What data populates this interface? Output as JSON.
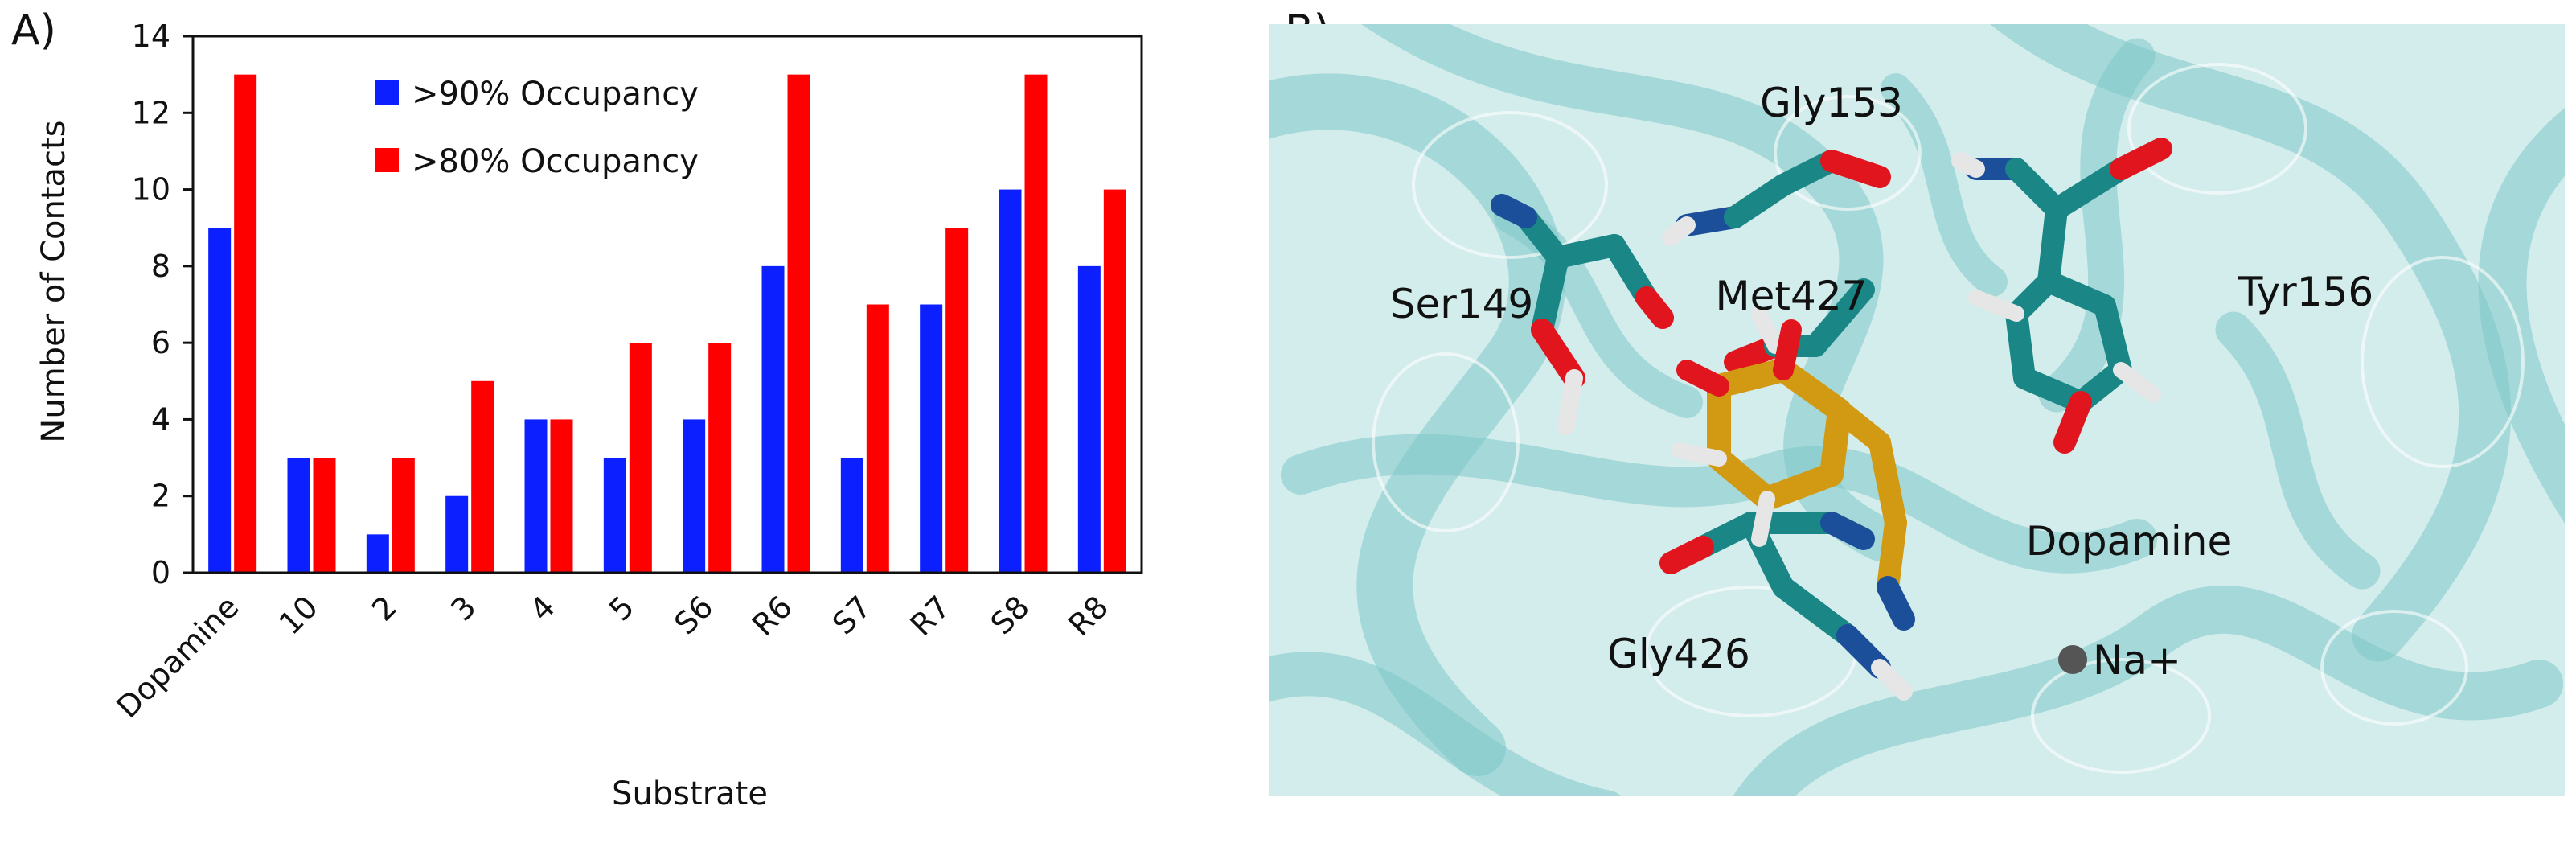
{
  "panels": {
    "a_label": "A)",
    "b_label": "B)"
  },
  "colors": {
    "series1": "#0b1fff",
    "series2": "#ff0000",
    "ribbon": "#7fc9c9",
    "carbon": "#1a8686",
    "dopamine": "#d19a12",
    "nitrogen": "#1b4f9a",
    "oxygen": "#e0151d",
    "hydrogen": "#e6e6e6",
    "sodium": "#555555"
  },
  "chart_data": {
    "type": "bar",
    "categories": [
      "Dopamine",
      "10",
      "2",
      "3",
      "4",
      "5",
      "S6",
      "R6",
      "S7",
      "R7",
      "S8",
      "R8"
    ],
    "series": [
      {
        "name": ">90% Occupancy",
        "color": "#0b1fff",
        "values": [
          9,
          3,
          1,
          2,
          4,
          3,
          4,
          8,
          3,
          7,
          10,
          8
        ]
      },
      {
        "name": ">80% Occupancy",
        "color": "#ff0000",
        "values": [
          13,
          3,
          3,
          5,
          4,
          6,
          6,
          13,
          7,
          9,
          13,
          10
        ]
      }
    ],
    "title": "",
    "xlabel": "Substrate",
    "ylabel": "Number of Contacts",
    "ylim": [
      0,
      14
    ],
    "yticks": [
      0,
      2,
      4,
      6,
      8,
      10,
      12,
      14
    ],
    "grid": false,
    "legend": "top-left inside plot"
  },
  "structure": {
    "residue_labels": [
      "Gly153",
      "Ser149",
      "Met427",
      "Tyr156",
      "Dopamine",
      "Gly426",
      "Na+"
    ]
  }
}
